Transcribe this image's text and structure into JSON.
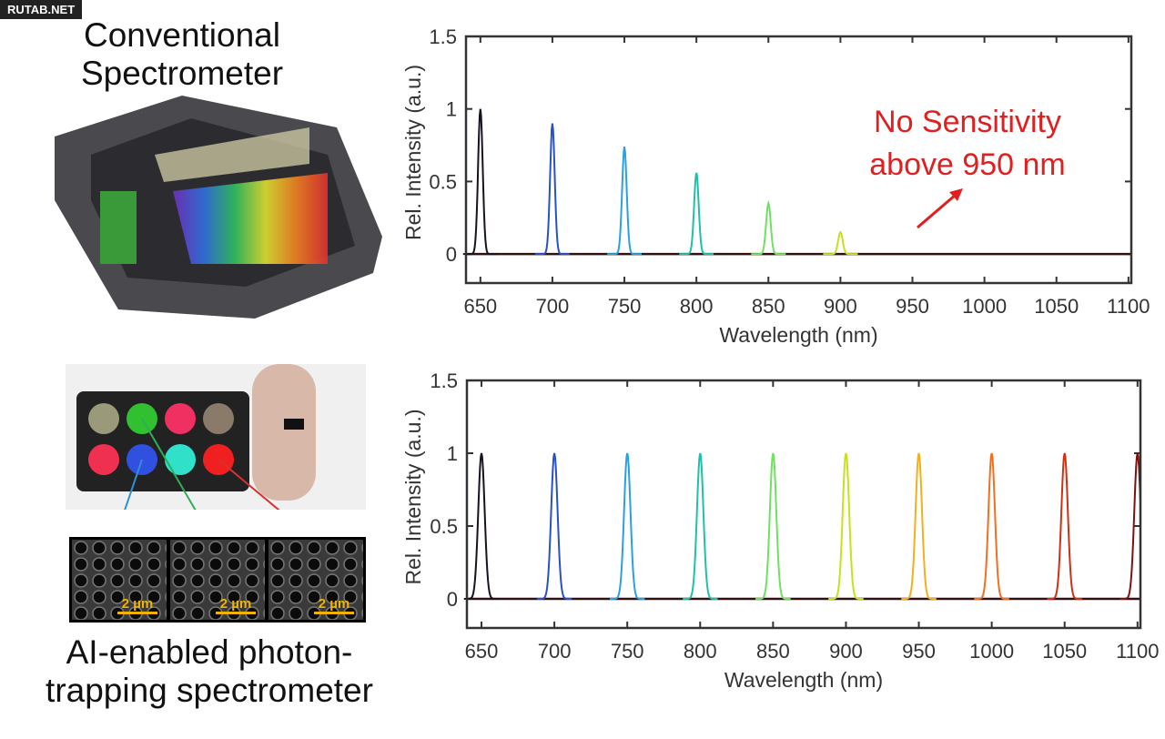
{
  "watermark": "RUTAB.NET",
  "left": {
    "top_caption_1": "Conventional",
    "top_caption_2": "Spectrometer",
    "bottom_caption_1": "AI-enabled photon-",
    "bottom_caption_2": "trapping spectrometer",
    "scale_bars": [
      "2 µm",
      "2 µm",
      "2 µm"
    ],
    "sem_border_colors": [
      "#2f8fd8",
      "#2fae5a",
      "#d83030"
    ]
  },
  "chart_data": [
    {
      "type": "line",
      "title": "",
      "xlabel": "Wavelength (nm)",
      "ylabel": "Rel. Intensity (a.u.)",
      "xlim": [
        640,
        1102
      ],
      "ylim": [
        -0.2,
        1.5
      ],
      "xticks": [
        "650",
        "700",
        "750",
        "800",
        "850",
        "900",
        "950",
        "1000",
        "1050",
        "1100"
      ],
      "yticks": [
        "0",
        "0.5",
        "1",
        "1.5"
      ],
      "annotation": {
        "line1": "No Sensitivity",
        "line2": "above 950 nm",
        "color": "#e02020"
      },
      "series": [
        {
          "center": 650,
          "peak": 1.0,
          "color": "#1a1020"
        },
        {
          "center": 700,
          "peak": 0.9,
          "color": "#2a50c8"
        },
        {
          "center": 750,
          "peak": 0.74,
          "color": "#2aa0e0"
        },
        {
          "center": 800,
          "peak": 0.56,
          "color": "#20c0a8"
        },
        {
          "center": 850,
          "peak": 0.35,
          "color": "#70e060"
        },
        {
          "center": 900,
          "peak": 0.15,
          "color": "#c8e020"
        }
      ]
    },
    {
      "type": "line",
      "title": "",
      "xlabel": "Wavelength (nm)",
      "ylabel": "Rel. Intensity (a.u.)",
      "xlim": [
        640,
        1102
      ],
      "ylim": [
        -0.2,
        1.5
      ],
      "xticks": [
        "650",
        "700",
        "750",
        "800",
        "850",
        "900",
        "950",
        "1000",
        "1050",
        "1100"
      ],
      "yticks": [
        "0",
        "0.5",
        "1",
        "1.5"
      ],
      "series": [
        {
          "center": 650,
          "peak": 1.0,
          "color": "#1a1020"
        },
        {
          "center": 700,
          "peak": 1.0,
          "color": "#2a50c8"
        },
        {
          "center": 750,
          "peak": 1.0,
          "color": "#2aa0e0"
        },
        {
          "center": 800,
          "peak": 1.0,
          "color": "#20c0a8"
        },
        {
          "center": 850,
          "peak": 1.0,
          "color": "#70e060"
        },
        {
          "center": 900,
          "peak": 1.0,
          "color": "#c8e020"
        },
        {
          "center": 950,
          "peak": 1.0,
          "color": "#f0b020"
        },
        {
          "center": 1000,
          "peak": 1.0,
          "color": "#f07020"
        },
        {
          "center": 1050,
          "peak": 1.0,
          "color": "#d03010"
        },
        {
          "center": 1100,
          "peak": 1.0,
          "color": "#801010"
        }
      ]
    }
  ]
}
